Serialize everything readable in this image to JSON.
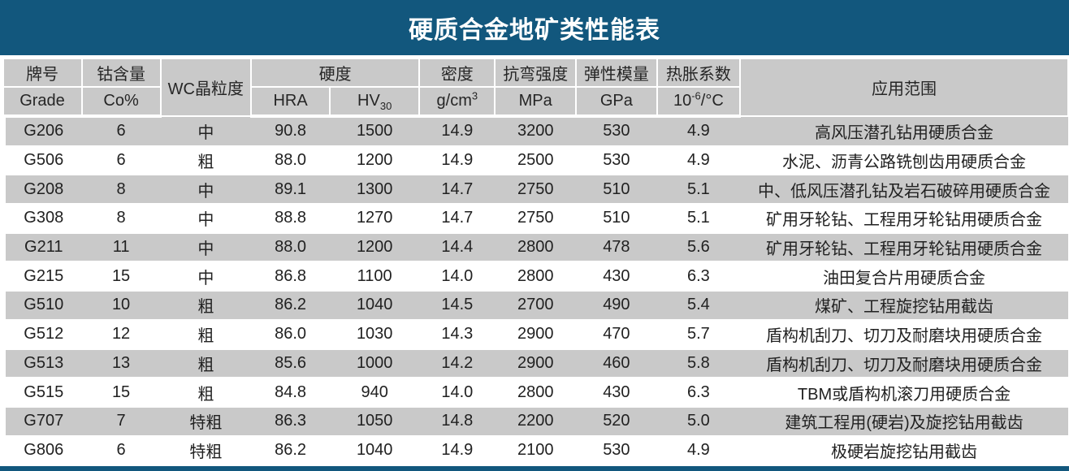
{
  "title": "硬质合金地矿类性能表",
  "colors": {
    "accent_blue": "#12577d",
    "stripe_gray": "#c9c9c9",
    "row_white": "#ffffff",
    "text_dark": "#212121"
  },
  "table": {
    "header": {
      "grade_cn": "牌号",
      "grade_en": "Grade",
      "co_cn": "钴含量",
      "co_en": "Co%",
      "wc_grain": "WC晶粒度",
      "hardness": "硬度",
      "hra": "HRA",
      "hv_base": "HV",
      "hv_sub": "30",
      "density_cn": "密度",
      "density_unit_base": "g/cm",
      "density_unit_sup": "3",
      "trs_cn": "抗弯强度",
      "trs_unit": "MPa",
      "modulus_cn": "弹性模量",
      "modulus_unit": "GPa",
      "cte_cn": "热胀系数",
      "cte_unit_base": "10",
      "cte_unit_sup": "-6",
      "cte_unit_rest": "/°C",
      "application": "应用范围"
    },
    "rows": [
      {
        "grade": "G206",
        "co": "6",
        "wc": "中",
        "hra": "90.8",
        "hv": "1500",
        "density": "14.9",
        "trs": "3200",
        "modulus": "530",
        "cte": "4.9",
        "application": "高风压潜孔钻用硬质合金"
      },
      {
        "grade": "G506",
        "co": "6",
        "wc": "粗",
        "hra": "88.0",
        "hv": "1200",
        "density": "14.9",
        "trs": "2500",
        "modulus": "530",
        "cte": "4.9",
        "application": "水泥、沥青公路铣刨齿用硬质合金"
      },
      {
        "grade": "G208",
        "co": "8",
        "wc": "中",
        "hra": "89.1",
        "hv": "1300",
        "density": "14.7",
        "trs": "2750",
        "modulus": "510",
        "cte": "5.1",
        "application": "中、低风压潜孔钻及岩石破碎用硬质合金"
      },
      {
        "grade": "G308",
        "co": "8",
        "wc": "中",
        "hra": "88.8",
        "hv": "1270",
        "density": "14.7",
        "trs": "2750",
        "modulus": "510",
        "cte": "5.1",
        "application": "矿用牙轮钻、工程用牙轮钻用硬质合金"
      },
      {
        "grade": "G211",
        "co": "11",
        "wc": "中",
        "hra": "88.0",
        "hv": "1200",
        "density": "14.4",
        "trs": "2800",
        "modulus": "478",
        "cte": "5.6",
        "application": "矿用牙轮钻、工程用牙轮钻用硬质合金"
      },
      {
        "grade": "G215",
        "co": "15",
        "wc": "中",
        "hra": "86.8",
        "hv": "1100",
        "density": "14.0",
        "trs": "2800",
        "modulus": "430",
        "cte": "6.3",
        "application": "油田复合片用硬质合金"
      },
      {
        "grade": "G510",
        "co": "10",
        "wc": "粗",
        "hra": "86.2",
        "hv": "1040",
        "density": "14.5",
        "trs": "2700",
        "modulus": "490",
        "cte": "5.4",
        "application": "煤矿、工程旋挖钻用截齿"
      },
      {
        "grade": "G512",
        "co": "12",
        "wc": "粗",
        "hra": "86.0",
        "hv": "1030",
        "density": "14.3",
        "trs": "2900",
        "modulus": "470",
        "cte": "5.7",
        "application": "盾构机刮刀、切刀及耐磨块用硬质合金"
      },
      {
        "grade": "G513",
        "co": "13",
        "wc": "粗",
        "hra": "85.6",
        "hv": "1000",
        "density": "14.2",
        "trs": "2900",
        "modulus": "460",
        "cte": "5.8",
        "application": "盾构机刮刀、切刀及耐磨块用硬质合金"
      },
      {
        "grade": "G515",
        "co": "15",
        "wc": "粗",
        "hra": "84.8",
        "hv": "940",
        "density": "14.0",
        "trs": "2800",
        "modulus": "430",
        "cte": "6.3",
        "application": "TBM或盾构机滚刀用硬质合金"
      },
      {
        "grade": "G707",
        "co": "7",
        "wc": "特粗",
        "hra": "86.3",
        "hv": "1050",
        "density": "14.8",
        "trs": "2200",
        "modulus": "520",
        "cte": "5.0",
        "application": "建筑工程用(硬岩)及旋挖钻用截齿"
      },
      {
        "grade": "G806",
        "co": "6",
        "wc": "特粗",
        "hra": "86.2",
        "hv": "1040",
        "density": "14.9",
        "trs": "2100",
        "modulus": "530",
        "cte": "4.9",
        "application": "极硬岩旋挖钻用截齿"
      }
    ]
  }
}
